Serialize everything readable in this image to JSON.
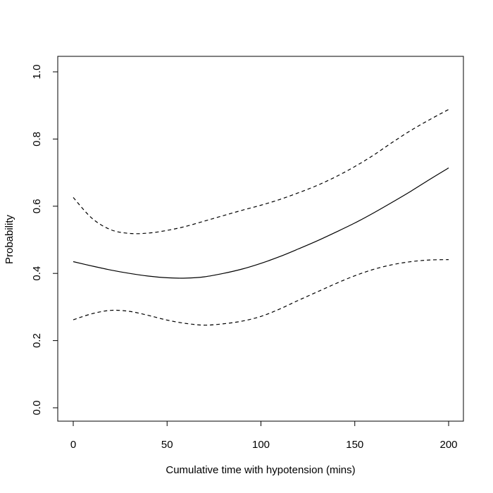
{
  "chart_data": {
    "type": "line",
    "title": "",
    "xlabel": "Cumulative time with hypotension (mins)",
    "ylabel": "Probability",
    "xlim": [
      0,
      200
    ],
    "ylim": [
      0,
      1
    ],
    "grid": false,
    "legend": "none",
    "x_ticks": [
      0,
      50,
      100,
      150,
      200
    ],
    "x_tick_labels": [
      "0",
      "50",
      "100",
      "150",
      "200"
    ],
    "y_ticks": [
      0,
      0.2,
      0.4,
      0.6,
      0.8,
      1
    ],
    "y_tick_labels": [
      "0.0",
      "0.2",
      "0.4",
      "0.6",
      "0.8",
      "1.0"
    ],
    "x": [
      0,
      10,
      20,
      30,
      40,
      50,
      60,
      70,
      80,
      90,
      100,
      110,
      120,
      130,
      140,
      150,
      160,
      170,
      180,
      190,
      200
    ],
    "series": [
      {
        "style": "solid",
        "color": "#000000",
        "values": [
          0.435,
          0.422,
          0.41,
          0.4,
          0.392,
          0.387,
          0.386,
          0.39,
          0.4,
          0.413,
          0.43,
          0.45,
          0.473,
          0.497,
          0.523,
          0.55,
          0.58,
          0.612,
          0.645,
          0.68,
          0.714
        ]
      },
      {
        "style": "dashed",
        "color": "#000000",
        "values": [
          0.626,
          0.564,
          0.53,
          0.519,
          0.52,
          0.528,
          0.54,
          0.556,
          0.572,
          0.588,
          0.603,
          0.62,
          0.64,
          0.662,
          0.688,
          0.718,
          0.752,
          0.79,
          0.826,
          0.858,
          0.888
        ]
      },
      {
        "style": "dashed",
        "color": "#000000",
        "values": [
          0.262,
          0.28,
          0.29,
          0.287,
          0.275,
          0.261,
          0.251,
          0.246,
          0.25,
          0.258,
          0.272,
          0.294,
          0.32,
          0.345,
          0.37,
          0.393,
          0.412,
          0.426,
          0.435,
          0.44,
          0.441
        ]
      }
    ]
  }
}
